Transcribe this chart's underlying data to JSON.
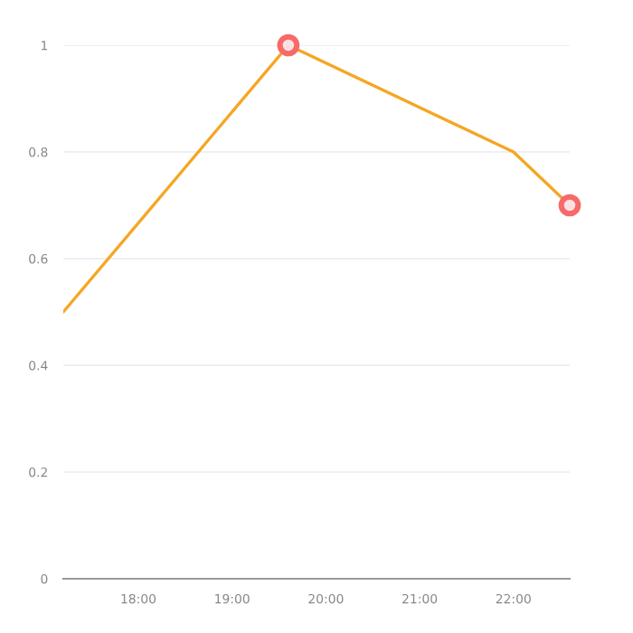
{
  "chart_data": {
    "type": "line",
    "series": [
      {
        "marker": "none",
        "color": "#f5a623",
        "x": [
          17.2,
          19.6,
          22.0,
          22.6
        ],
        "values": [
          0.5,
          1.0,
          0.8,
          0.7
        ]
      },
      {
        "type": "scatter",
        "marker": "circle",
        "color": "#f66a6a",
        "x": [
          19.6,
          22.6
        ],
        "values": [
          1.0,
          0.7
        ]
      }
    ],
    "xlim": [
      17.2,
      22.6
    ],
    "xticks": [
      {
        "value": 18,
        "label": "18:00"
      },
      {
        "value": 19,
        "label": "19:00"
      },
      {
        "value": 20,
        "label": "20:00"
      },
      {
        "value": 21,
        "label": "21:00"
      },
      {
        "value": 22,
        "label": "22:00"
      }
    ],
    "ylim": [
      0,
      1
    ],
    "yticks": [
      0,
      0.2,
      0.4,
      0.6,
      0.8,
      1
    ],
    "grid": "y",
    "line_style": "solid"
  }
}
